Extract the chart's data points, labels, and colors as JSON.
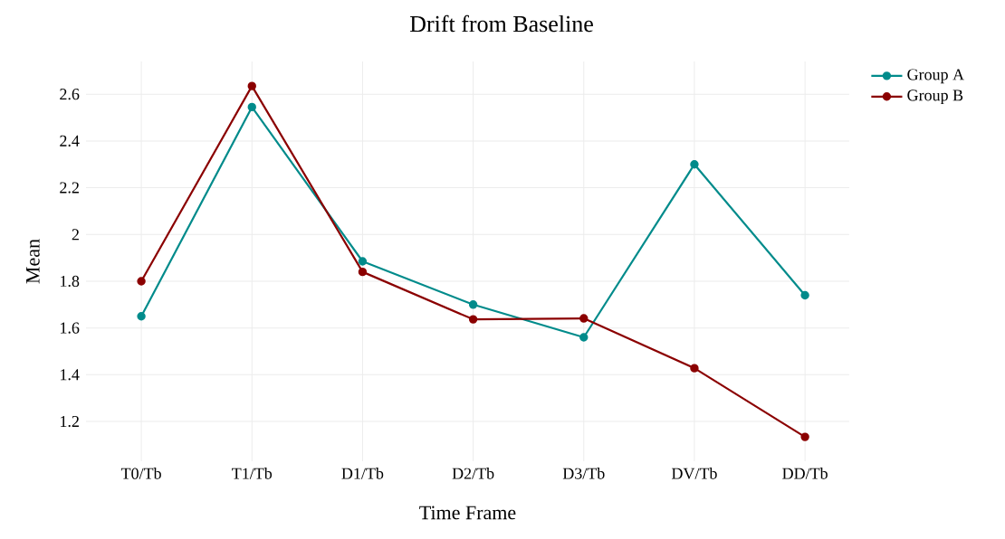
{
  "chart_data": {
    "type": "line",
    "title": "Drift from Baseline",
    "xlabel": "Time Frame",
    "ylabel": "Mean",
    "categories": [
      "T0/Tb",
      "T1/Tb",
      "D1/Tb",
      "D2/Tb",
      "D3/Tb",
      "DV/Tb",
      "DD/Tb"
    ],
    "series": [
      {
        "name": "Group A",
        "color": "#008b8b",
        "values": [
          1.65,
          2.545,
          1.885,
          1.7,
          1.56,
          2.3,
          1.74
        ]
      },
      {
        "name": "Group B",
        "color": "#8b0000",
        "values": [
          1.8,
          2.635,
          1.84,
          1.637,
          1.641,
          1.428,
          1.134
        ]
      }
    ],
    "ylim": [
      1.03,
      2.74
    ],
    "yticks": [
      1.2,
      1.4,
      1.6,
      1.8,
      2,
      2.2,
      2.4,
      2.6
    ],
    "grid": true,
    "legend": "top right",
    "marker": "circle",
    "line_style": "solid"
  }
}
